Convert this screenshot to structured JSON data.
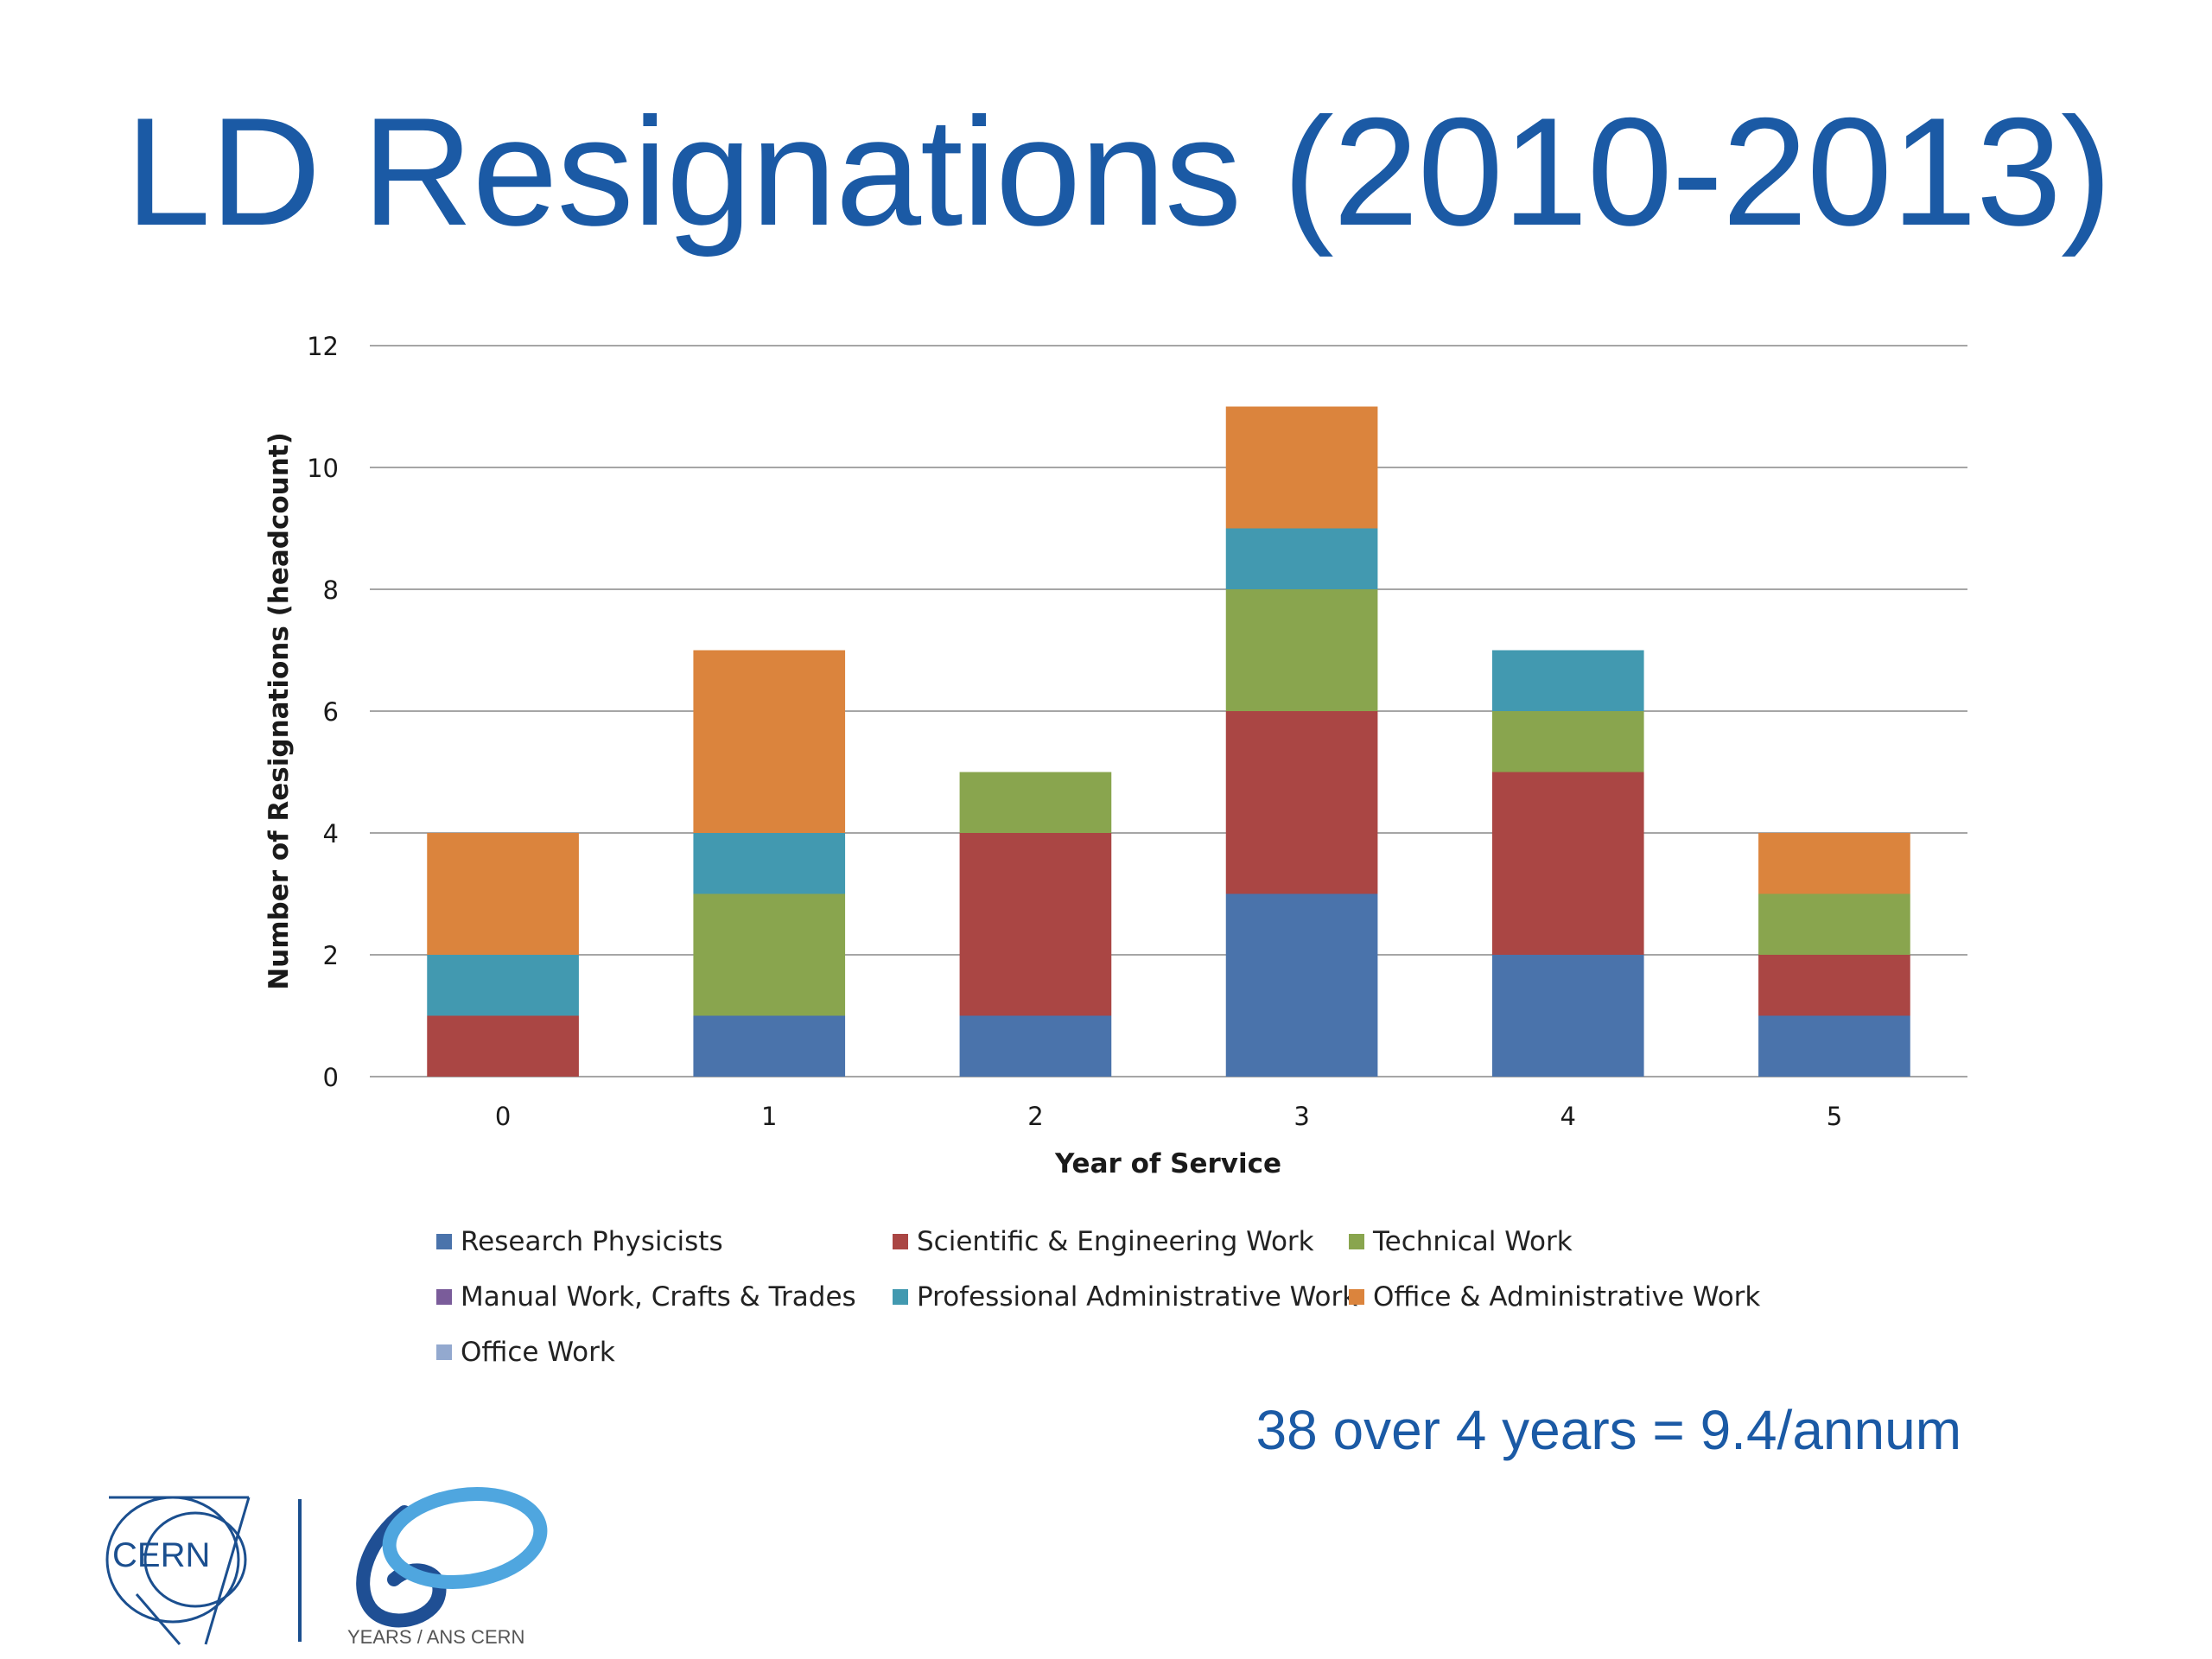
{
  "slide": {
    "title": "LD Resignations (2010-2013)",
    "summary": "38 over 4 years = 9.4/annum"
  },
  "logos": {
    "cern_text": "CERN",
    "anniversary_text": "YEARS / ANS CERN"
  },
  "colors": {
    "title": "#1b5aa5",
    "grid": "#a6a6a6"
  },
  "chart_data": {
    "type": "bar",
    "stacked": true,
    "xlabel": "Year of Service",
    "ylabel": "Number of Resignations (headcount)",
    "categories": [
      "0",
      "1",
      "2",
      "3",
      "4",
      "5"
    ],
    "ylim": [
      0,
      12
    ],
    "yticks": [
      "0",
      "2",
      "4",
      "6",
      "8",
      "10",
      "12"
    ],
    "grid": true,
    "legend_position": "bottom",
    "series": [
      {
        "name": "Research Physicists",
        "color": "#4a73ab",
        "values": [
          0,
          1,
          1,
          3,
          2,
          1
        ]
      },
      {
        "name": "Scientific & Engineering Work",
        "color": "#aa4644",
        "values": [
          1,
          0,
          3,
          3,
          3,
          1
        ]
      },
      {
        "name": "Technical Work",
        "color": "#89a54e",
        "values": [
          0,
          2,
          1,
          2,
          1,
          1
        ]
      },
      {
        "name": "Manual Work, Crafts & Trades",
        "color": "#7a5c9a",
        "values": [
          0,
          0,
          0,
          0,
          0,
          0
        ]
      },
      {
        "name": "Professional Administrative Work",
        "color": "#4299b0",
        "values": [
          1,
          1,
          0,
          1,
          1,
          0
        ]
      },
      {
        "name": "Office & Administrative Work",
        "color": "#db843d",
        "values": [
          2,
          3,
          0,
          2,
          0,
          1
        ]
      },
      {
        "name": "Office Work",
        "color": "#93a9cf",
        "values": [
          0,
          0,
          0,
          0,
          0,
          0
        ]
      }
    ]
  }
}
